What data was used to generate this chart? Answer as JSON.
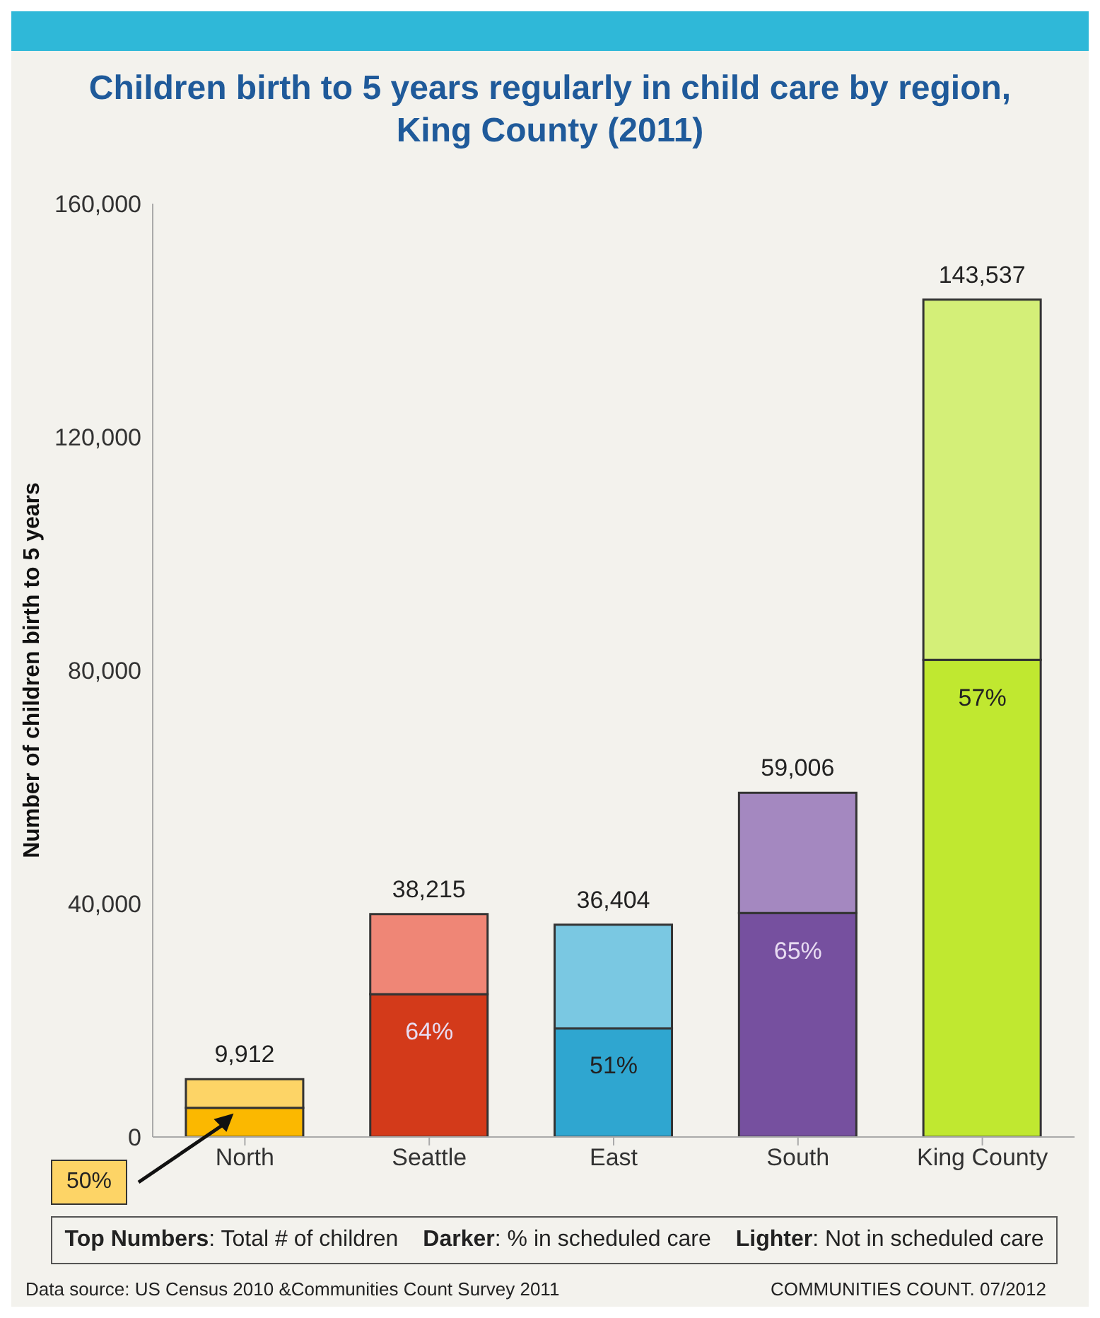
{
  "chart_data": {
    "type": "bar",
    "title": "Children birth to 5 years regularly in child care by region, King County (2011)",
    "ylabel": "Number of children birth to 5 years",
    "categories": [
      "North",
      "Seattle",
      "East",
      "South",
      "King County"
    ],
    "stacked": true,
    "series": [
      {
        "colors": [
          "#fbb800",
          "#d33a1a",
          "#2fa6d0",
          "#76509f",
          "#c0e830"
        ],
        "values": [
          5000,
          24500,
          18600,
          38400,
          81800
        ]
      },
      {
        "colors": [
          "#fdd466",
          "#ef8676",
          "#7ac8e2",
          "#a488c0",
          "#d4ef78"
        ],
        "values": [
          4912,
          13715,
          17804,
          20606,
          61737
        ]
      }
    ],
    "totals": [
      "9,912",
      "38,215",
      "36,404",
      "59,006",
      "143,537"
    ],
    "ylim": [
      0,
      160000
    ],
    "yticks": [
      {
        "value": 0,
        "label": "0"
      },
      {
        "value": 40000,
        "label": "40,000"
      },
      {
        "value": 80000,
        "label": "80,000"
      },
      {
        "value": 120000,
        "label": "120,000"
      },
      {
        "value": 160000,
        "label": "160,000"
      }
    ],
    "grid": false,
    "legend": false,
    "annotations": [
      "50%",
      {
        "text": "64%",
        "x": "Seattle",
        "y": 24500
      },
      {
        "text": "51%",
        "x": "East",
        "y": 18600
      },
      {
        "text": "65%",
        "x": "South",
        "y": 38400
      },
      {
        "text": "57%",
        "x": "King County",
        "y": 81800
      },
      "Top Numbers: Total # of children",
      "Darker: % in scheduled care",
      "Lighter: Not in scheduled care",
      "Data source: US Census 2010 &Communities Count Survey 2011",
      "COMMUNITIES COUNT. 07/2012"
    ]
  }
}
